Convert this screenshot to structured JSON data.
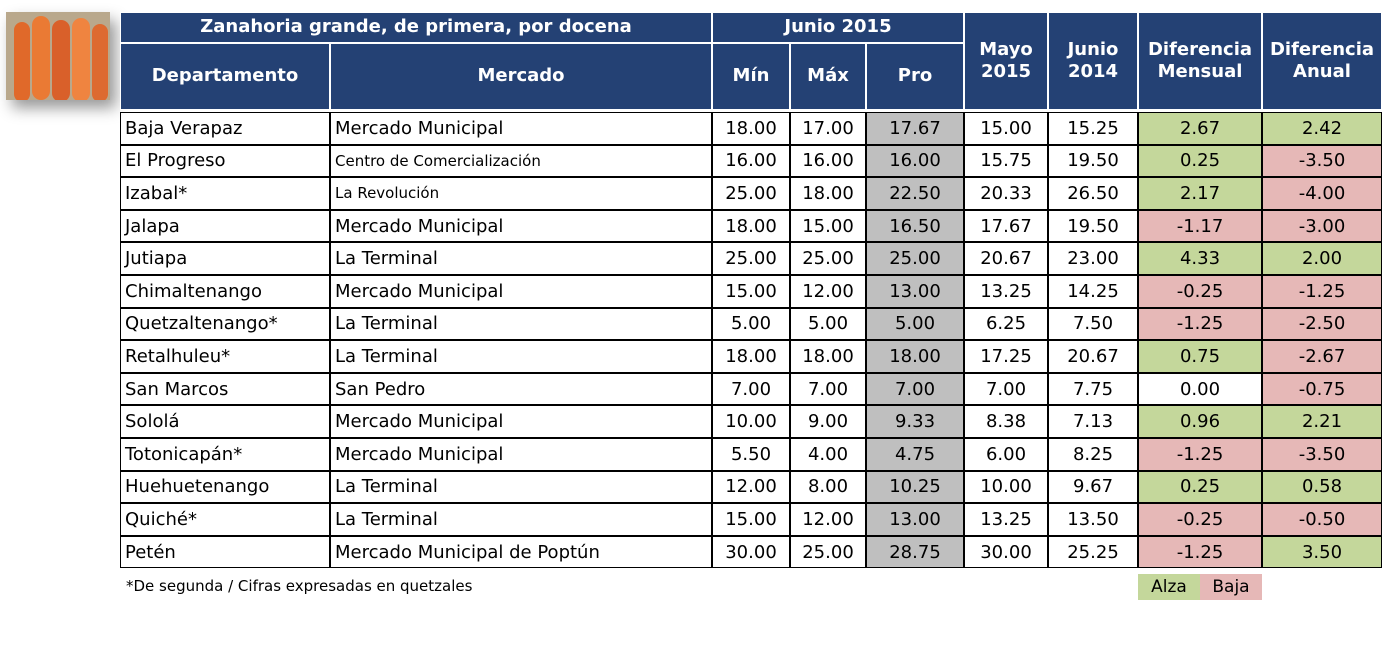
{
  "header": {
    "title": "Zanahoria grande, de primera, por docena",
    "period": "Junio 2015",
    "columns": [
      "Departamento",
      "Mercado",
      "Mín",
      "Máx",
      "Pro",
      "Mayo 2015",
      "Junio 2014",
      "Diferencia Mensual",
      "Diferencia Anual"
    ]
  },
  "table": {
    "rows": [
      [
        "Baja Verapaz",
        "Mercado Municipal",
        "18.00",
        "17.00",
        "17.67",
        "15.00",
        "15.25",
        "2.67",
        "2.42"
      ],
      [
        "El Progreso",
        "Centro de Comercialización",
        "16.00",
        "16.00",
        "16.00",
        "15.75",
        "19.50",
        "0.25",
        "-3.50"
      ],
      [
        "Izabal*",
        "La Revolución",
        "25.00",
        "18.00",
        "22.50",
        "20.33",
        "26.50",
        "2.17",
        "-4.00"
      ],
      [
        "Jalapa",
        "Mercado Municipal",
        "18.00",
        "15.00",
        "16.50",
        "17.67",
        "19.50",
        "-1.17",
        "-3.00"
      ],
      [
        "Jutiapa",
        "La Terminal",
        "25.00",
        "25.00",
        "25.00",
        "20.67",
        "23.00",
        "4.33",
        "2.00"
      ],
      [
        "Chimaltenango",
        "Mercado Municipal",
        "15.00",
        "12.00",
        "13.00",
        "13.25",
        "14.25",
        "-0.25",
        "-1.25"
      ],
      [
        "Quetzaltenango*",
        "La Terminal",
        "5.00",
        "5.00",
        "5.00",
        "6.25",
        "7.50",
        "-1.25",
        "-2.50"
      ],
      [
        "Retalhuleu*",
        "La Terminal",
        "18.00",
        "18.00",
        "18.00",
        "17.25",
        "20.67",
        "0.75",
        "-2.67"
      ],
      [
        "San Marcos",
        "San Pedro",
        "7.00",
        "7.00",
        "7.00",
        "7.00",
        "7.75",
        "0.00",
        "-0.75"
      ],
      [
        "Sololá",
        "Mercado Municipal",
        "10.00",
        "9.00",
        "9.33",
        "8.38",
        "7.13",
        "0.96",
        "2.21"
      ],
      [
        "Totonicapán*",
        "Mercado Municipal",
        "5.50",
        "4.00",
        "4.75",
        "6.00",
        "8.25",
        "-1.25",
        "-3.50"
      ],
      [
        "Huehuetenango",
        "La Terminal",
        "12.00",
        "8.00",
        "10.25",
        "10.00",
        "9.67",
        "0.25",
        "0.58"
      ],
      [
        "Quiché*",
        "La Terminal",
        "15.00",
        "12.00",
        "13.00",
        "13.25",
        "13.50",
        "-0.25",
        "-0.50"
      ],
      [
        "Petén",
        "Mercado Municipal de Poptún",
        "30.00",
        "25.00",
        "28.75",
        "30.00",
        "25.25",
        "-1.25",
        "3.50"
      ]
    ]
  },
  "footer": {
    "note": "*De segunda / Cifras expresadas en quetzales",
    "legend": [
      "Alza",
      "Baja"
    ]
  }
}
